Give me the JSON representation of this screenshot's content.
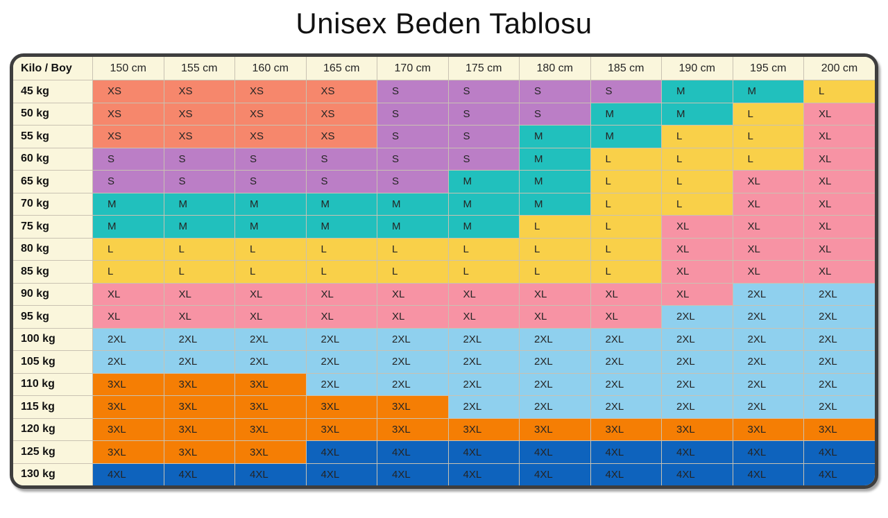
{
  "chart_data": {
    "type": "table",
    "title": "Unisex Beden Tablosu",
    "corner_label": "Kilo / Boy",
    "columns": [
      "150 cm",
      "155 cm",
      "160 cm",
      "165 cm",
      "170 cm",
      "175 cm",
      "180 cm",
      "185 cm",
      "190 cm",
      "195 cm",
      "200 cm"
    ],
    "rows": [
      {
        "label": "45 kg",
        "values": [
          "XS",
          "XS",
          "XS",
          "XS",
          "S",
          "S",
          "S",
          "S",
          "M",
          "M",
          "L"
        ]
      },
      {
        "label": "50 kg",
        "values": [
          "XS",
          "XS",
          "XS",
          "XS",
          "S",
          "S",
          "S",
          "M",
          "M",
          "L",
          "XL"
        ]
      },
      {
        "label": "55 kg",
        "values": [
          "XS",
          "XS",
          "XS",
          "XS",
          "S",
          "S",
          "M",
          "M",
          "L",
          "L",
          "XL"
        ]
      },
      {
        "label": "60 kg",
        "values": [
          "S",
          "S",
          "S",
          "S",
          "S",
          "S",
          "M",
          "L",
          "L",
          "L",
          "XL"
        ]
      },
      {
        "label": "65 kg",
        "values": [
          "S",
          "S",
          "S",
          "S",
          "S",
          "M",
          "M",
          "L",
          "L",
          "XL",
          "XL"
        ]
      },
      {
        "label": "70 kg",
        "values": [
          "M",
          "M",
          "M",
          "M",
          "M",
          "M",
          "M",
          "L",
          "L",
          "XL",
          "XL"
        ]
      },
      {
        "label": "75 kg",
        "values": [
          "M",
          "M",
          "M",
          "M",
          "M",
          "M",
          "L",
          "L",
          "XL",
          "XL",
          "XL"
        ]
      },
      {
        "label": "80 kg",
        "values": [
          "L",
          "L",
          "L",
          "L",
          "L",
          "L",
          "L",
          "L",
          "XL",
          "XL",
          "XL"
        ]
      },
      {
        "label": "85 kg",
        "values": [
          "L",
          "L",
          "L",
          "L",
          "L",
          "L",
          "L",
          "L",
          "XL",
          "XL",
          "XL"
        ]
      },
      {
        "label": "90 kg",
        "values": [
          "XL",
          "XL",
          "XL",
          "XL",
          "XL",
          "XL",
          "XL",
          "XL",
          "XL",
          "2XL",
          "2XL"
        ]
      },
      {
        "label": "95 kg",
        "values": [
          "XL",
          "XL",
          "XL",
          "XL",
          "XL",
          "XL",
          "XL",
          "XL",
          "2XL",
          "2XL",
          "2XL"
        ]
      },
      {
        "label": "100 kg",
        "values": [
          "2XL",
          "2XL",
          "2XL",
          "2XL",
          "2XL",
          "2XL",
          "2XL",
          "2XL",
          "2XL",
          "2XL",
          "2XL"
        ]
      },
      {
        "label": "105 kg",
        "values": [
          "2XL",
          "2XL",
          "2XL",
          "2XL",
          "2XL",
          "2XL",
          "2XL",
          "2XL",
          "2XL",
          "2XL",
          "2XL"
        ]
      },
      {
        "label": "110 kg",
        "values": [
          "3XL",
          "3XL",
          "3XL",
          "2XL",
          "2XL",
          "2XL",
          "2XL",
          "2XL",
          "2XL",
          "2XL",
          "2XL"
        ]
      },
      {
        "label": "115 kg",
        "values": [
          "3XL",
          "3XL",
          "3XL",
          "3XL",
          "3XL",
          "2XL",
          "2XL",
          "2XL",
          "2XL",
          "2XL",
          "2XL"
        ]
      },
      {
        "label": "120 kg",
        "values": [
          "3XL",
          "3XL",
          "3XL",
          "3XL",
          "3XL",
          "3XL",
          "3XL",
          "3XL",
          "3XL",
          "3XL",
          "3XL"
        ]
      },
      {
        "label": "125 kg",
        "values": [
          "3XL",
          "3XL",
          "3XL",
          "4XL",
          "4XL",
          "4XL",
          "4XL",
          "4XL",
          "4XL",
          "4XL",
          "4XL"
        ]
      },
      {
        "label": "130 kg",
        "values": [
          "4XL",
          "4XL",
          "4XL",
          "4XL",
          "4XL",
          "4XL",
          "4XL",
          "4XL",
          "4XL",
          "4XL",
          "4XL"
        ]
      }
    ],
    "size_colors": {
      "XS": "#f6876c",
      "S": "#bb7ec6",
      "M": "#21c0bd",
      "L": "#f9d049",
      "XL": "#f793a4",
      "2XL": "#8fd0ee",
      "3XL": "#f57e04",
      "4XL": "#0e63bd"
    },
    "layout": {
      "header_background": "#faf6dc",
      "frame_border_color": "#3e3e3e",
      "grid_line_color": "#c9c2b2",
      "text_color": "#242424"
    }
  }
}
